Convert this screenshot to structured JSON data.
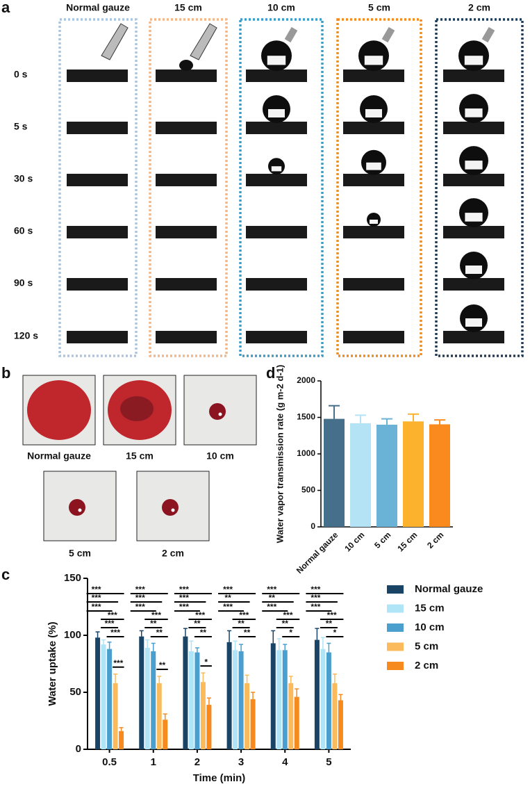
{
  "panel_a": {
    "label": "a",
    "columns": [
      "Normal gauze",
      "15 cm",
      "10 cm",
      "5 cm",
      "2 cm"
    ],
    "rows": [
      "0 s",
      "5 s",
      "30 s",
      "60 s",
      "90 s",
      "120 s"
    ],
    "frame_colors": [
      "#a9c5e2",
      "#f4b589",
      "#3a9dc9",
      "#f08c1f",
      "#1e3b58"
    ]
  },
  "panel_b": {
    "label": "b",
    "captions": [
      "Normal gauze",
      "15 cm",
      "10 cm",
      "5 cm",
      "2 cm"
    ]
  },
  "chart_data": [
    {
      "type": "bar",
      "panel_label": "d",
      "ylabel": "Water vapor transmission rate (g m-2 d-1)",
      "categories": [
        "Normal gauze",
        "10 cm",
        "5 cm",
        "15 cm",
        "2 cm"
      ],
      "values": [
        1480,
        1420,
        1400,
        1445,
        1405
      ],
      "errors": [
        180,
        110,
        80,
        100,
        60
      ],
      "colors": [
        "#456f8a",
        "#b3e3f5",
        "#6bb3d6",
        "#fdb22e",
        "#fb8a1e"
      ],
      "ylim": [
        0,
        2000
      ],
      "yticks": [
        0,
        500,
        1000,
        1500,
        2000
      ]
    },
    {
      "type": "grouped_bar",
      "panel_label": "c",
      "xlabel": "Time (min)",
      "ylabel": "Water uptake (%)",
      "categories": [
        "0.5",
        "1",
        "2",
        "3",
        "4",
        "5"
      ],
      "ylim": [
        0,
        150
      ],
      "yticks": [
        0,
        50,
        100,
        150
      ],
      "series": [
        {
          "name": "Normal gauze",
          "color": "#1a4466",
          "values": [
            98,
            99,
            99,
            94,
            93,
            96
          ],
          "errors": [
            5,
            5,
            7,
            10,
            11,
            10
          ]
        },
        {
          "name": "15 cm",
          "color": "#b0e4f7",
          "values": [
            92,
            89,
            86,
            87,
            87,
            88
          ],
          "errors": [
            4,
            7,
            9,
            8,
            10,
            10
          ]
        },
        {
          "name": "10 cm",
          "color": "#4a9fcf",
          "values": [
            88,
            86,
            85,
            86,
            87,
            85
          ],
          "errors": [
            6,
            7,
            4,
            6,
            5,
            8
          ]
        },
        {
          "name": "5 cm",
          "color": "#fbbb5c",
          "values": [
            58,
            58,
            59,
            58,
            58,
            58
          ],
          "errors": [
            8,
            6,
            8,
            7,
            6,
            8
          ]
        },
        {
          "name": "2 cm",
          "color": "#f68a1f",
          "values": [
            16,
            26,
            39,
            44,
            46,
            43
          ],
          "errors": [
            3,
            5,
            6,
            6,
            7,
            5
          ]
        }
      ],
      "annotations": [
        [
          "***",
          "***",
          "***",
          "***",
          "***",
          "***",
          "***"
        ],
        [
          "***",
          "***",
          "***",
          "***",
          "**",
          "**",
          "**"
        ],
        [
          "***",
          "***",
          "***",
          "***",
          "**",
          "**",
          "*"
        ],
        [
          "***",
          "**",
          "***",
          "***",
          "**",
          "**"
        ],
        [
          "***",
          "**",
          "***",
          "***",
          "**",
          "*"
        ],
        [
          "***",
          "***",
          "***",
          "***",
          "**",
          "*"
        ]
      ]
    }
  ]
}
